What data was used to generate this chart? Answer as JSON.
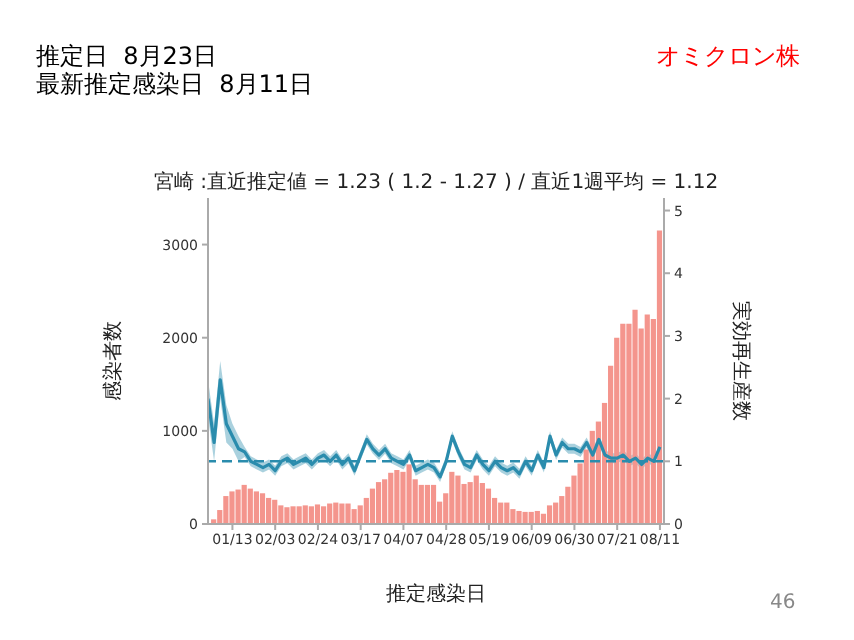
{
  "chart_data": {
    "type": "bar",
    "title": "宮崎 :直近推定値 = 1.23 ( 1.2 - 1.27 ) / 直近1週平均 = 1.12",
    "xlabel": "推定感染日",
    "ylabel": "感染者数",
    "y2label": "実効再生産数",
    "annotations": [
      "推定日  8月23日",
      "最新推定感染日  8月11日",
      "オミクロン株",
      "46"
    ],
    "x": [
      "--01-01",
      "--01-04",
      "--01-07",
      "--01-10",
      "--01-13",
      "--01-16",
      "--01-19",
      "--01-22",
      "--01-25",
      "--01-28",
      "--01-31",
      "--02-03",
      "--02-06",
      "--02-09",
      "--02-12",
      "--02-15",
      "--02-18",
      "--02-21",
      "--02-24",
      "--02-27",
      "--03-02",
      "--03-05",
      "--03-08",
      "--03-11",
      "--03-14",
      "--03-17",
      "--03-20",
      "--03-23",
      "--03-26",
      "--03-29",
      "--04-01",
      "--04-04",
      "--04-07",
      "--04-10",
      "--04-13",
      "--04-16",
      "--04-19",
      "--04-22",
      "--04-25",
      "--04-28",
      "--05-01",
      "--05-04",
      "--05-07",
      "--05-10",
      "--05-13",
      "--05-16",
      "--05-19",
      "--05-22",
      "--05-25",
      "--05-28",
      "--05-31",
      "--06-03",
      "--06-06",
      "--06-09",
      "--06-12",
      "--06-15",
      "--06-18",
      "--06-21",
      "--06-24",
      "--06-27",
      "--06-30",
      "--07-03",
      "--07-06",
      "--07-09",
      "--07-12",
      "--07-15",
      "--07-18",
      "--07-21",
      "--07-24",
      "--07-27",
      "--07-30",
      "--08-02",
      "--08-05",
      "--08-08",
      "--08-11"
    ],
    "series": [
      {
        "color": "#f4958d",
        "values": [
          0,
          50,
          150,
          300,
          350,
          370,
          420,
          380,
          350,
          330,
          280,
          260,
          200,
          180,
          190,
          190,
          200,
          190,
          210,
          190,
          220,
          230,
          220,
          220,
          160,
          200,
          280,
          380,
          450,
          480,
          550,
          580,
          560,
          640,
          480,
          420,
          420,
          420,
          240,
          330,
          560,
          520,
          430,
          450,
          520,
          440,
          380,
          280,
          230,
          230,
          160,
          140,
          130,
          130,
          140,
          110,
          200,
          230,
          300,
          400,
          520,
          650,
          800,
          1000,
          1100,
          1300,
          1700,
          2000,
          2150,
          2150,
          2300,
          2100,
          2250,
          2200,
          3150
        ]
      },
      {
        "type": "line",
        "axis": "y2",
        "color": "#2a8cad",
        "values": [
          2.0,
          1.3,
          2.3,
          1.6,
          1.4,
          1.2,
          1.15,
          1.0,
          0.95,
          0.9,
          0.95,
          0.85,
          1.0,
          1.05,
          0.95,
          1.0,
          1.05,
          0.95,
          1.05,
          1.1,
          1.0,
          1.1,
          0.95,
          1.05,
          0.85,
          1.1,
          1.35,
          1.2,
          1.1,
          1.2,
          1.05,
          1.0,
          0.95,
          1.1,
          0.85,
          0.9,
          0.95,
          0.9,
          0.75,
          1.0,
          1.4,
          1.15,
          0.95,
          0.9,
          1.1,
          0.95,
          0.85,
          1.0,
          0.9,
          0.85,
          0.9,
          0.8,
          1.0,
          0.85,
          1.1,
          0.9,
          1.4,
          1.1,
          1.3,
          1.2,
          1.2,
          1.15,
          1.3,
          1.1,
          1.35,
          1.1,
          1.05,
          1.05,
          1.1,
          1.0,
          1.05,
          0.95,
          1.05,
          1.0,
          1.23
        ],
        "lower": [
          1.7,
          1.0,
          2.0,
          1.3,
          1.2,
          1.0,
          1.07,
          0.92,
          0.87,
          0.82,
          0.87,
          0.77,
          0.92,
          0.97,
          0.87,
          0.92,
          0.97,
          0.87,
          0.97,
          1.02,
          0.92,
          1.02,
          0.87,
          0.97,
          0.77,
          1.02,
          1.27,
          1.12,
          1.02,
          1.12,
          0.97,
          0.92,
          0.87,
          1.02,
          0.77,
          0.82,
          0.87,
          0.82,
          0.67,
          0.92,
          1.32,
          1.07,
          0.87,
          0.82,
          1.02,
          0.87,
          0.77,
          0.92,
          0.82,
          0.77,
          0.82,
          0.72,
          0.92,
          0.77,
          1.02,
          0.82,
          1.32,
          1.02,
          1.22,
          1.12,
          1.12,
          1.07,
          1.22,
          1.02,
          1.27,
          1.02,
          0.97,
          0.97,
          1.02,
          0.92,
          0.97,
          0.87,
          0.97,
          0.92,
          1.2
        ],
        "upper": [
          2.3,
          1.6,
          2.6,
          1.9,
          1.6,
          1.4,
          1.23,
          1.08,
          1.03,
          0.98,
          1.03,
          0.93,
          1.08,
          1.13,
          1.03,
          1.08,
          1.13,
          1.03,
          1.13,
          1.18,
          1.08,
          1.18,
          1.03,
          1.13,
          0.93,
          1.18,
          1.43,
          1.28,
          1.18,
          1.28,
          1.13,
          1.08,
          1.03,
          1.18,
          0.93,
          0.98,
          1.03,
          0.98,
          0.83,
          1.08,
          1.48,
          1.23,
          1.03,
          0.98,
          1.18,
          1.03,
          0.93,
          1.08,
          0.98,
          0.93,
          0.98,
          0.88,
          1.08,
          0.93,
          1.18,
          0.98,
          1.48,
          1.18,
          1.38,
          1.28,
          1.28,
          1.23,
          1.38,
          1.18,
          1.43,
          1.18,
          1.13,
          1.13,
          1.18,
          1.08,
          1.13,
          1.03,
          1.13,
          1.08,
          1.27
        ]
      }
    ],
    "xlim": [
      "--01-01",
      "--08-13"
    ],
    "xticks": [
      {
        "value": "--01-13",
        "label": "01/13"
      },
      {
        "value": "--02-03",
        "label": "02/03"
      },
      {
        "value": "--02-24",
        "label": "02/24"
      },
      {
        "value": "--03-17",
        "label": "03/17"
      },
      {
        "value": "--04-07",
        "label": "04/07"
      },
      {
        "value": "--04-28",
        "label": "04/28"
      },
      {
        "value": "--05-19",
        "label": "05/19"
      },
      {
        "value": "--06-09",
        "label": "06/09"
      },
      {
        "value": "--06-30",
        "label": "06/30"
      },
      {
        "value": "--07-21",
        "label": "07/21"
      },
      {
        "value": "--08-11",
        "label": "08/11"
      }
    ],
    "ylim": [
      0,
      3500
    ],
    "yticks": [
      0,
      1000,
      2000,
      3000
    ],
    "y2lim": [
      0,
      5.2
    ],
    "y2ticks": [
      0,
      1,
      2,
      3,
      4,
      5
    ],
    "ref_lines": [
      {
        "axis": "y2",
        "value": 1,
        "color": "#2a8cad",
        "line_style": "dashed"
      }
    ],
    "grid": false,
    "legend": false
  }
}
